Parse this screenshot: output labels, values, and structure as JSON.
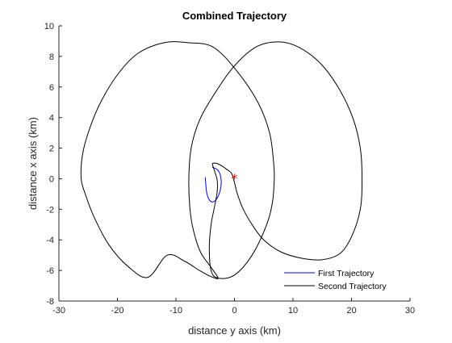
{
  "chart_data": {
    "type": "line",
    "title": "Combined Trajectory",
    "xlabel": "distance y axis (km)",
    "ylabel": "distance x axis (km)",
    "xlim": [
      -30,
      30
    ],
    "ylim": [
      -8,
      10
    ],
    "xticks": [
      -30,
      -20,
      -10,
      0,
      10,
      20,
      30
    ],
    "yticks": [
      -8,
      -6,
      -4,
      -2,
      0,
      2,
      4,
      6,
      8,
      10
    ],
    "xtick_labels": [
      "-30",
      "-20",
      "-10",
      "0",
      "10",
      "20",
      "30"
    ],
    "ytick_labels": [
      "-8",
      "-6",
      "-4",
      "-2",
      "0",
      "2",
      "4",
      "6",
      "8",
      "10"
    ],
    "grid": false,
    "legend_position": "bottom-right",
    "colors": {
      "first": "#0000ff",
      "second": "#000000",
      "marker": "#ff0000",
      "axis": "#262626"
    },
    "series": [
      {
        "name": "First Trajectory",
        "color": "#0000ff",
        "x": [
          -3.8,
          -2.8,
          -2.3,
          -2.4,
          -3.1,
          -4.0,
          -4.7,
          -5.0
        ],
        "y": [
          0.75,
          0.55,
          0.0,
          -0.7,
          -1.35,
          -1.5,
          -1.0,
          0.1
        ]
      },
      {
        "name": "Second Trajectory",
        "color": "#000000",
        "x": [
          -3.8,
          -3.5,
          -3.0,
          -2.0,
          -1.3,
          -0.5,
          0.0,
          0.5,
          1.5,
          3.0,
          5.0,
          8.0,
          11.5,
          14.9,
          18.0,
          20.0,
          21.5,
          21.8,
          21.5,
          20.3,
          18.0,
          14.8,
          11.0,
          7.5,
          3.6,
          -0.2,
          -3.5,
          -6.0,
          -7.4,
          -7.8,
          -7.6,
          -7.0,
          -5.8,
          -4.0,
          -2.8,
          -4.0,
          -6.0,
          -8.5,
          -11.5,
          -14.8,
          -18.3,
          -21.5,
          -24.0,
          -25.5,
          -26.2,
          -26.0,
          -25.0,
          -23.0,
          -20.0,
          -16.5,
          -12.0,
          -8.0,
          -3.6,
          0.5,
          4.0,
          6.0,
          6.7,
          6.8,
          6.5,
          5.5,
          3.0,
          0.0,
          -2.8,
          -4.0,
          -4.3,
          -4.0,
          -3.5,
          -3.0,
          -2.9,
          -3.0,
          -3.4,
          -3.7,
          -3.8
        ],
        "y": [
          1.0,
          1.02,
          1.0,
          0.8,
          0.6,
          0.35,
          -0.25,
          -1.0,
          -2.0,
          -3.0,
          -4.0,
          -4.8,
          -5.2,
          -5.3,
          -4.9,
          -3.8,
          -2.0,
          0.0,
          2.0,
          3.9,
          5.8,
          7.5,
          8.6,
          8.95,
          8.6,
          7.3,
          5.5,
          3.8,
          2.0,
          0.0,
          -2.0,
          -3.4,
          -4.8,
          -5.8,
          -6.5,
          -6.4,
          -6.0,
          -5.4,
          -5.0,
          -6.45,
          -5.7,
          -4.3,
          -2.5,
          -1.0,
          0.0,
          1.5,
          3.0,
          4.9,
          6.8,
          8.2,
          8.9,
          8.9,
          8.6,
          7.0,
          5.0,
          3.0,
          1.0,
          0.0,
          -1.5,
          -3.0,
          -5.0,
          -6.3,
          -6.5,
          -6.0,
          -4.5,
          -3.0,
          -2.0,
          -1.0,
          -0.5,
          0.0,
          0.5,
          0.85,
          1.0
        ]
      }
    ],
    "marker": {
      "symbol": "*",
      "color": "#ff0000",
      "x": 0,
      "y": 0
    }
  }
}
